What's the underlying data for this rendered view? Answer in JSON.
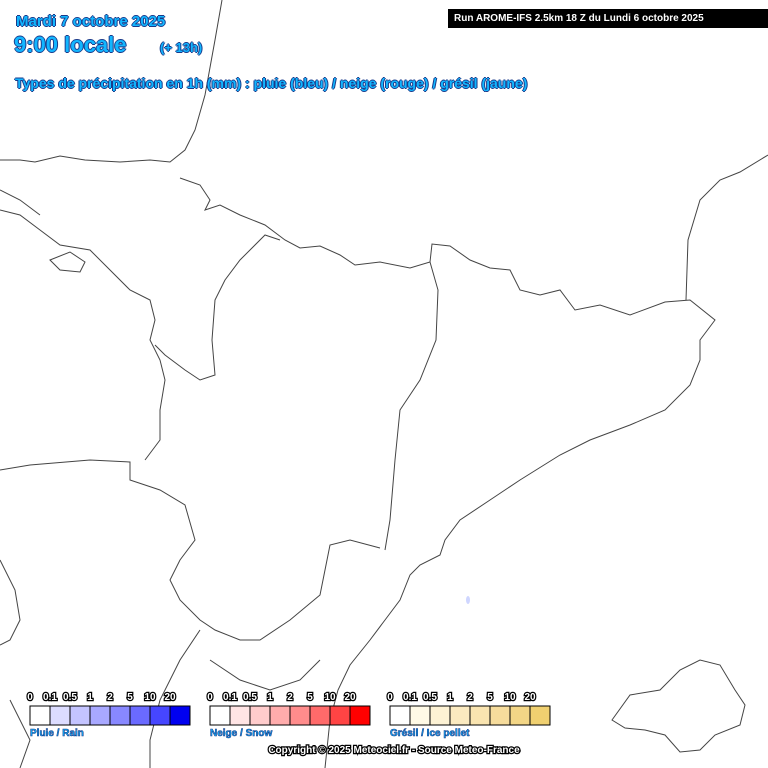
{
  "header": {
    "date": "Mardi 7 octobre 2025",
    "time": "9:00 locale",
    "offset": "(+ 13h)",
    "subtitle": "Types de précipitation en 1h (mm) : pluie (bleu) / neige (rouge) / grésil (jaune)",
    "run": "Run AROME-IFS 2.5km 18 Z du Lundi 6 octobre 2025"
  },
  "legends": [
    {
      "label": "Pluie / Rain",
      "ticks": [
        "0",
        "0.1",
        "0.5",
        "1",
        "2",
        "5",
        "10",
        "20"
      ],
      "colors": [
        "#ffffff",
        "#dcdcff",
        "#c4c4ff",
        "#a8a8ff",
        "#8888ff",
        "#6a6aff",
        "#4646ff",
        "#0000f0"
      ]
    },
    {
      "label": "Neige / Snow",
      "ticks": [
        "0",
        "0.1",
        "0.5",
        "1",
        "2",
        "5",
        "10",
        "20"
      ],
      "colors": [
        "#ffffff",
        "#ffe4e4",
        "#ffcccc",
        "#ffacac",
        "#ff8c8c",
        "#ff6a6a",
        "#ff4444",
        "#ff0000"
      ]
    },
    {
      "label": "Grésil / Ice pellet",
      "ticks": [
        "0",
        "0.1",
        "0.5",
        "1",
        "2",
        "5",
        "10",
        "20"
      ],
      "colors": [
        "#ffffff",
        "#fffae6",
        "#fdf2d4",
        "#fbeac0",
        "#f9e4b0",
        "#f6dc9c",
        "#f3d686",
        "#f0d070"
      ]
    }
  ],
  "copyright": "Copyright © 2025 Meteociel.fr - Source Meteo-France"
}
